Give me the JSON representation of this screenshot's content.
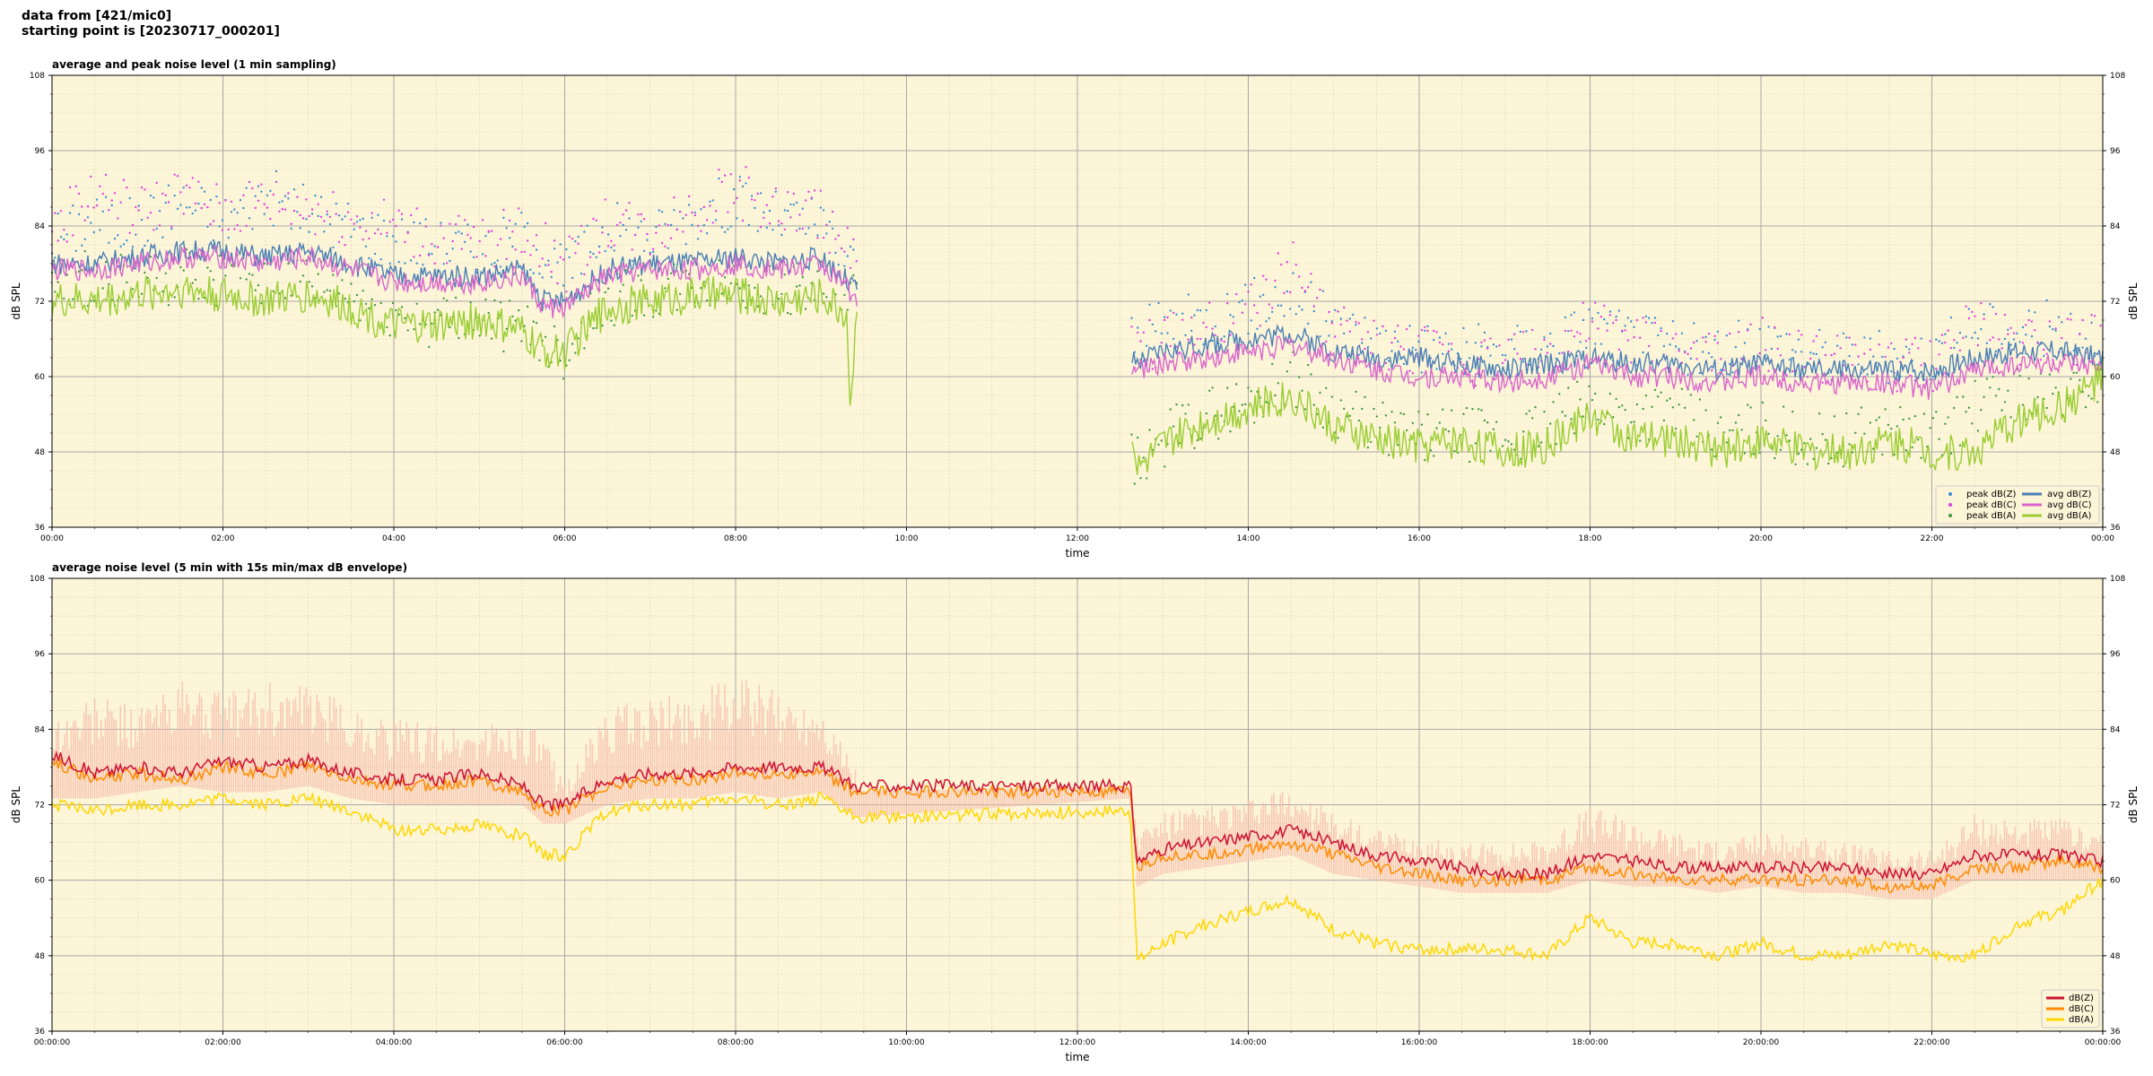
{
  "header": {
    "line1": "data from [421/mic0]",
    "line2": "starting point is [20230717_000201]"
  },
  "chart_data": [
    {
      "type": "line",
      "title": "average and peak noise level (1 min sampling)",
      "xlabel": "time",
      "ylabel": "dB SPL",
      "xlim": [
        0,
        24
      ],
      "ylim": [
        36,
        108
      ],
      "yticks": [
        36,
        48,
        60,
        72,
        84,
        96,
        108
      ],
      "xtick_labels": [
        "00:00",
        "02:00",
        "04:00",
        "06:00",
        "08:00",
        "10:00",
        "12:00",
        "14:00",
        "16:00",
        "18:00",
        "20:00",
        "22:00",
        "00:00"
      ],
      "grid": true,
      "legend_position": "bottom-right",
      "colors": {
        "background": "#fdf5d8",
        "peak_z": "#3a8fd0",
        "peak_c": "#e040e0",
        "peak_a": "#3f9a3f",
        "avg_z": "#4a7fb5",
        "avg_c": "#d966cc",
        "avg_a": "#9acd32"
      },
      "data_gap": [
        9.42,
        12.62
      ],
      "series": [
        {
          "name": "peak dB(Z)",
          "kind": "scatter",
          "x": [
            0,
            0.5,
            1,
            1.5,
            2,
            2.5,
            3,
            3.5,
            4,
            4.5,
            5,
            5.5,
            5.75,
            6,
            6.5,
            7,
            7.5,
            8,
            8.5,
            9,
            9.4,
            12.7,
            13,
            13.5,
            14,
            14.5,
            15,
            15.5,
            16,
            16.5,
            17,
            17.5,
            18,
            18.5,
            19,
            19.5,
            20,
            20.5,
            21,
            21.5,
            22,
            22.5,
            23,
            23.5,
            24
          ],
          "y": [
            82,
            85,
            84,
            88,
            85,
            89,
            86,
            84,
            82,
            81,
            80,
            82,
            80,
            76,
            84,
            82,
            86,
            88,
            85,
            84,
            77,
            66,
            68,
            69,
            71,
            73,
            68,
            66,
            65,
            64,
            64,
            65,
            68,
            66,
            65,
            63,
            66,
            64,
            63,
            63,
            63,
            68,
            67,
            68,
            66
          ]
        },
        {
          "name": "peak dB(C)",
          "kind": "scatter",
          "x": [
            0,
            0.5,
            1,
            1.5,
            2,
            2.5,
            3,
            3.5,
            4,
            4.5,
            5,
            5.5,
            5.75,
            6,
            6.5,
            7,
            7.5,
            8,
            8.5,
            9,
            9.4,
            12.7,
            13,
            13.5,
            14,
            14.5,
            15,
            15.5,
            16,
            16.5,
            17,
            17.5,
            18,
            18.5,
            19,
            19.5,
            20,
            20.5,
            21,
            21.5,
            22,
            22.5,
            23,
            23.5,
            24
          ],
          "y": [
            83,
            90,
            86,
            89,
            86,
            88,
            87,
            85,
            84,
            82,
            81,
            83,
            81,
            77,
            85,
            83,
            87,
            90,
            86,
            86,
            78,
            64,
            66,
            67,
            70,
            78,
            67,
            65,
            64,
            63,
            63,
            64,
            68,
            66,
            64,
            62,
            65,
            63,
            62,
            62,
            62,
            68,
            66,
            67,
            65
          ]
        },
        {
          "name": "peak dB(A)",
          "kind": "scatter",
          "x": [
            0,
            0.5,
            1,
            1.5,
            2,
            2.5,
            3,
            3.5,
            4,
            4.5,
            5,
            5.5,
            5.75,
            6,
            6.5,
            7,
            7.5,
            8,
            8.5,
            9,
            9.4,
            12.7,
            13,
            13.5,
            14,
            14.5,
            15,
            15.5,
            16,
            16.5,
            17,
            17.5,
            18,
            18.5,
            19,
            19.5,
            20,
            20.5,
            21,
            21.5,
            22,
            22.5,
            23,
            23.5,
            24
          ],
          "y": [
            74,
            76,
            75,
            76,
            75,
            76,
            75,
            73,
            70,
            69,
            70,
            67,
            66,
            64,
            72,
            73,
            74,
            75,
            74,
            74,
            72,
            46,
            50,
            54,
            56,
            60,
            55,
            52,
            50,
            51,
            50,
            52,
            56,
            54,
            55,
            50,
            52,
            50,
            50,
            52,
            50,
            55,
            58,
            56,
            60
          ]
        },
        {
          "name": "avg dB(Z)",
          "kind": "line",
          "x": [
            0,
            0.5,
            1,
            1.5,
            2,
            2.5,
            3,
            3.5,
            4,
            4.5,
            5,
            5.5,
            5.75,
            6,
            6.5,
            7,
            7.5,
            8,
            8.5,
            9,
            9.4,
            12.7,
            13,
            13.5,
            14,
            14.5,
            15,
            15.5,
            16,
            16.5,
            17,
            17.5,
            18,
            18.5,
            19,
            19.5,
            20,
            20.5,
            21,
            21.5,
            22,
            22.5,
            23,
            23.5,
            24
          ],
          "y": [
            78,
            78,
            79,
            80,
            80,
            79,
            80,
            78,
            76,
            76,
            76,
            77,
            72,
            72,
            77,
            78,
            78,
            79,
            78,
            79,
            74,
            62,
            64,
            65,
            66,
            67,
            64,
            63,
            63,
            62,
            61,
            62,
            63,
            62,
            62,
            61,
            62,
            61,
            61,
            61,
            61,
            63,
            64,
            64,
            63
          ]
        },
        {
          "name": "avg dB(C)",
          "kind": "line",
          "x": [
            0,
            0.5,
            1,
            1.5,
            2,
            2.5,
            3,
            3.5,
            4,
            4.5,
            5,
            5.5,
            5.75,
            6,
            6.5,
            7,
            7.5,
            8,
            8.5,
            9,
            9.4,
            12.7,
            13,
            13.5,
            14,
            14.5,
            15,
            15.5,
            16,
            16.5,
            17,
            17.5,
            18,
            18.5,
            19,
            19.5,
            20,
            20.5,
            21,
            21.5,
            22,
            22.5,
            23,
            23.5,
            24
          ],
          "y": [
            77,
            77,
            78,
            79,
            79,
            78,
            79,
            77,
            75,
            75,
            75,
            76,
            71,
            71,
            76,
            77,
            77,
            78,
            77,
            78,
            73,
            61,
            62,
            63,
            64,
            65,
            63,
            61,
            60,
            60,
            59,
            60,
            62,
            60,
            60,
            59,
            60,
            59,
            59,
            59,
            58,
            61,
            62,
            62,
            61
          ]
        },
        {
          "name": "avg dB(A)",
          "kind": "line",
          "x": [
            0,
            0.5,
            1,
            1.5,
            2,
            2.5,
            3,
            3.5,
            4,
            4.5,
            5,
            5.5,
            5.75,
            6,
            6.5,
            7,
            7.5,
            8,
            8.5,
            9,
            9.3,
            9.35,
            9.4,
            12.62,
            12.7,
            13,
            13.5,
            14,
            14.5,
            15,
            15.5,
            16,
            16.5,
            17,
            17.5,
            18,
            18.5,
            19,
            19.5,
            20,
            20.5,
            21,
            21.5,
            22,
            22.5,
            23,
            23.5,
            24
          ],
          "y": [
            72,
            72,
            73,
            74,
            73,
            72,
            73,
            71,
            68,
            68,
            69,
            67,
            64,
            64,
            71,
            72,
            73,
            73,
            72,
            73,
            70,
            53,
            70,
            55,
            45,
            49,
            53,
            55,
            57,
            52,
            50,
            49,
            50,
            48,
            49,
            54,
            50,
            50,
            48,
            50,
            48,
            48,
            50,
            48,
            48,
            53,
            55,
            60
          ]
        }
      ]
    },
    {
      "type": "line",
      "title": "average noise level (5 min with 15s min/max dB envelope)",
      "xlabel": "time",
      "ylabel": "dB SPL",
      "xlim": [
        0,
        24
      ],
      "ylim": [
        36,
        108
      ],
      "yticks": [
        36,
        48,
        60,
        72,
        84,
        96,
        108
      ],
      "xtick_labels": [
        "00:00:00",
        "02:00:00",
        "04:00:00",
        "06:00:00",
        "08:00:00",
        "10:00:00",
        "12:00:00",
        "14:00:00",
        "16:00:00",
        "18:00:00",
        "20:00:00",
        "22:00:00",
        "00:00:00"
      ],
      "grid": true,
      "legend_position": "bottom-right",
      "colors": {
        "background": "#fdf5d8",
        "envelope": "#f5b8a8",
        "z": "#cc1133",
        "c": "#ff8c00",
        "a": "#ffd700"
      },
      "envelope": {
        "x": [
          0,
          0.5,
          1,
          1.5,
          2,
          2.5,
          3,
          3.5,
          4,
          4.5,
          5,
          5.5,
          5.75,
          6,
          6.5,
          7,
          7.5,
          8,
          8.5,
          9,
          9.4,
          12.62,
          12.7,
          13,
          13.5,
          14,
          14.5,
          15,
          15.5,
          16,
          16.5,
          17,
          17.5,
          18,
          18.5,
          19,
          19.5,
          20,
          20.5,
          21,
          21.5,
          22,
          22.5,
          23,
          23.5,
          24
        ],
        "upper": [
          86,
          90,
          88,
          92,
          90,
          92,
          91,
          88,
          86,
          85,
          85,
          86,
          83,
          76,
          88,
          89,
          90,
          93,
          90,
          89,
          78,
          76,
          68,
          71,
          72,
          73,
          75,
          71,
          68,
          67,
          66,
          66,
          67,
          72,
          70,
          68,
          66,
          68,
          67,
          66,
          65,
          65,
          71,
          70,
          70,
          68
        ],
        "lower": [
          74,
          74,
          75,
          76,
          75,
          75,
          76,
          74,
          73,
          73,
          73,
          73,
          70,
          70,
          73,
          74,
          74,
          75,
          74,
          75,
          71,
          74,
          60,
          62,
          63,
          64,
          65,
          62,
          61,
          60,
          59,
          59,
          59,
          61,
          60,
          60,
          59,
          60,
          59,
          59,
          58,
          58,
          61,
          61,
          61,
          61
        ]
      },
      "series": [
        {
          "name": "dB(Z)",
          "x": [
            0,
            0.5,
            1,
            1.5,
            2,
            2.5,
            3,
            3.5,
            4,
            4.5,
            5,
            5.5,
            5.75,
            6,
            6.5,
            7,
            7.5,
            8,
            8.5,
            9,
            9.4,
            12.62,
            12.7,
            13,
            13.5,
            14,
            14.5,
            15,
            15.5,
            16,
            16.5,
            17,
            17.5,
            18,
            18.5,
            19,
            19.5,
            20,
            20.5,
            21,
            21.5,
            22,
            22.5,
            23,
            23.5,
            24
          ],
          "y": [
            80,
            77,
            78,
            77,
            79,
            78,
            79,
            77,
            76,
            76,
            77,
            75,
            72,
            72,
            76,
            77,
            77,
            78,
            78,
            78,
            75,
            75,
            63,
            65,
            66,
            67,
            68,
            66,
            64,
            63,
            62,
            61,
            61,
            64,
            63,
            62,
            62,
            62,
            62,
            62,
            61,
            61,
            64,
            64,
            64,
            63
          ]
        },
        {
          "name": "dB(C)",
          "x": [
            0,
            0.5,
            1,
            1.5,
            2,
            2.5,
            3,
            3.5,
            4,
            4.5,
            5,
            5.5,
            5.75,
            6,
            6.5,
            7,
            7.5,
            8,
            8.5,
            9,
            9.4,
            12.62,
            12.7,
            13,
            13.5,
            14,
            14.5,
            15,
            15.5,
            16,
            16.5,
            17,
            17.5,
            18,
            18.5,
            19,
            19.5,
            20,
            20.5,
            21,
            21.5,
            22,
            22.5,
            23,
            23.5,
            24
          ],
          "y": [
            79,
            76,
            77,
            76,
            78,
            77,
            78,
            76,
            75,
            75,
            76,
            74,
            71,
            71,
            75,
            76,
            76,
            77,
            77,
            77,
            74,
            74,
            62,
            64,
            64,
            65,
            66,
            64,
            62,
            61,
            60,
            60,
            60,
            62,
            61,
            60,
            60,
            60,
            60,
            60,
            59,
            59,
            62,
            62,
            63,
            62
          ]
        },
        {
          "name": "dB(A)",
          "x": [
            0,
            0.5,
            1,
            1.5,
            2,
            2.5,
            3,
            3.5,
            4,
            4.5,
            5,
            5.5,
            5.75,
            6,
            6.5,
            7,
            7.5,
            8,
            8.5,
            9,
            9.4,
            12.62,
            12.7,
            13,
            13.5,
            14,
            14.5,
            15,
            15.5,
            16,
            16.5,
            17,
            17.5,
            18,
            18.5,
            19,
            19.5,
            20,
            20.5,
            21,
            21.5,
            22,
            22.5,
            23,
            23.5,
            24
          ],
          "y": [
            72,
            71,
            72,
            72,
            73,
            72,
            73,
            71,
            68,
            68,
            69,
            67,
            64,
            64,
            71,
            72,
            72,
            73,
            72,
            73,
            70,
            71,
            47,
            50,
            53,
            55,
            57,
            52,
            50,
            49,
            49,
            49,
            48,
            54,
            50,
            50,
            48,
            50,
            48,
            48,
            50,
            48,
            48,
            53,
            55,
            60
          ]
        }
      ]
    }
  ]
}
